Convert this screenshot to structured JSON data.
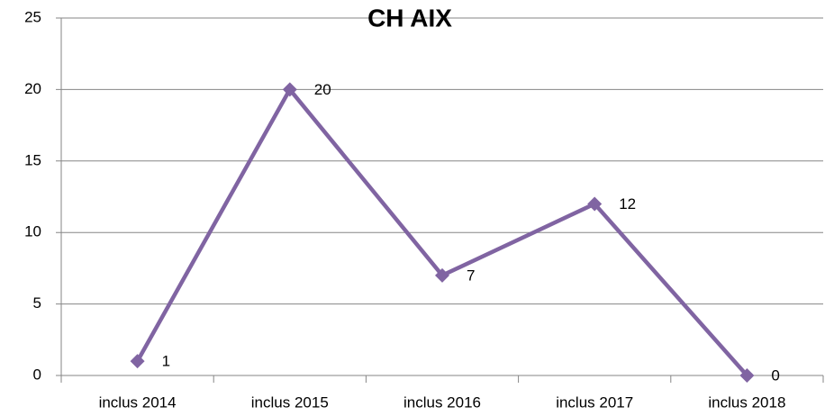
{
  "chart_data": {
    "type": "line",
    "title": "CH AIX",
    "categories": [
      "inclus 2014",
      "inclus 2015",
      "inclus 2016",
      "inclus 2017",
      "inclus 2018"
    ],
    "series": [
      {
        "name": "CH AIX",
        "color": "#8064a2",
        "values": [
          1,
          20,
          7,
          12,
          0
        ]
      }
    ],
    "ylim": [
      0,
      25
    ],
    "yticks": [
      0,
      5,
      10,
      15,
      20,
      25
    ],
    "grid": true
  }
}
